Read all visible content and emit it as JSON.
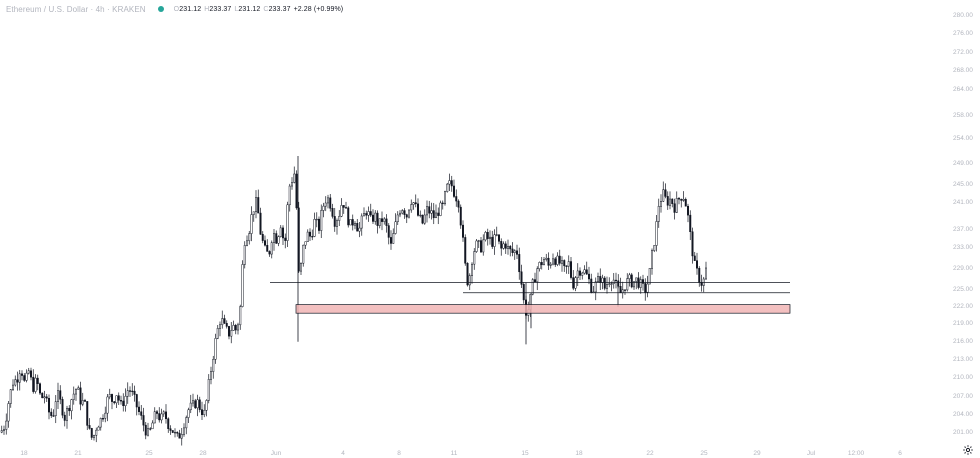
{
  "header": {
    "title": "Ethereum / U.S. Dollar · 4h · KRAKEN",
    "ohlc": [
      {
        "key": "O",
        "value": "231.12"
      },
      {
        "key": "H",
        "value": "233.37"
      },
      {
        "key": "L",
        "value": "231.12"
      },
      {
        "key": "C",
        "value": "233.37"
      }
    ],
    "change": "+2.28 (+0.99%)"
  },
  "icons": {
    "settings": "gear-icon",
    "status": "status-dot-icon"
  },
  "colors": {
    "candle": "#131722",
    "level_line": "#131722",
    "zone_fill": "#f1b5b5",
    "zone_stroke": "#131722",
    "status_dot": "#26a69a",
    "axis_text": "#b2b5be"
  },
  "chart_data": {
    "type": "candlestick",
    "symbol": "Ethereum / U.S. Dollar",
    "timeframe": "4h",
    "exchange": "KRAKEN",
    "x_tick_labels": [
      "18",
      "21",
      "25",
      "28",
      "Jun",
      "4",
      "8",
      "11",
      "15",
      "18",
      "22",
      "25",
      "29",
      "Jul",
      "12:00",
      "6"
    ],
    "y_tick_labels": [
      "201.00",
      "204.00",
      "207.00",
      "210.00",
      "213.00",
      "216.00",
      "219.00",
      "222.00",
      "225.00",
      "229.00",
      "233.00",
      "237.00",
      "241.00",
      "245.00",
      "249.00",
      "254.00",
      "258.00",
      "264.00",
      "268.00",
      "272.00",
      "276.00",
      "280.00"
    ],
    "ylim": [
      200,
      281
    ],
    "price_path": [
      [
        0,
        202.2
      ],
      [
        4,
        203.5
      ],
      [
        8,
        208.0
      ],
      [
        12,
        211.5
      ],
      [
        16,
        212.0
      ],
      [
        20,
        214.5
      ],
      [
        24,
        211.0
      ],
      [
        28,
        213.5
      ],
      [
        32,
        210.5
      ],
      [
        36,
        211.8
      ],
      [
        40,
        208.5
      ],
      [
        44,
        209.0
      ],
      [
        48,
        206.0
      ],
      [
        52,
        205.0
      ],
      [
        56,
        209.5
      ],
      [
        60,
        207.5
      ],
      [
        64,
        205.0
      ],
      [
        68,
        207.0
      ],
      [
        72,
        209.0
      ],
      [
        76,
        210.5
      ],
      [
        80,
        208.0
      ],
      [
        84,
        207.5
      ],
      [
        88,
        202.5
      ],
      [
        92,
        200.8
      ],
      [
        96,
        203.5
      ],
      [
        100,
        204.5
      ],
      [
        104,
        206.5
      ],
      [
        108,
        209.0
      ],
      [
        112,
        208.0
      ],
      [
        116,
        209.5
      ],
      [
        120,
        207.0
      ],
      [
        124,
        208.5
      ],
      [
        128,
        210.5
      ],
      [
        132,
        209.0
      ],
      [
        136,
        207.0
      ],
      [
        140,
        205.0
      ],
      [
        144,
        203.0
      ],
      [
        148,
        201.5
      ],
      [
        152,
        204.0
      ],
      [
        156,
        206.0
      ],
      [
        160,
        204.5
      ],
      [
        164,
        205.5
      ],
      [
        168,
        203.5
      ],
      [
        172,
        202.5
      ],
      [
        176,
        201.0
      ],
      [
        180,
        202.0
      ],
      [
        184,
        204.5
      ],
      [
        188,
        206.5
      ],
      [
        192,
        207.0
      ],
      [
        196,
        208.0
      ],
      [
        200,
        206.5
      ],
      [
        204,
        205.5
      ],
      [
        208,
        211.0
      ],
      [
        212,
        216.0
      ],
      [
        216,
        220.5
      ],
      [
        220,
        223.5
      ],
      [
        224,
        221.5
      ],
      [
        228,
        220.5
      ],
      [
        232,
        222.0
      ],
      [
        236,
        221.0
      ],
      [
        240,
        226.0
      ],
      [
        242,
        234.0
      ],
      [
        244,
        238.0
      ],
      [
        248,
        239.5
      ],
      [
        252,
        243.5
      ],
      [
        256,
        245.0
      ],
      [
        260,
        239.0
      ],
      [
        264,
        236.0
      ],
      [
        268,
        235.0
      ],
      [
        272,
        239.5
      ],
      [
        276,
        238.0
      ],
      [
        280,
        241.0
      ],
      [
        284,
        236.5
      ],
      [
        288,
        247.5
      ],
      [
        292,
        249.5
      ],
      [
        295,
        251.0
      ],
      [
        297,
        232.0
      ],
      [
        299,
        231.0
      ],
      [
        302,
        236.0
      ],
      [
        306,
        239.0
      ],
      [
        310,
        238.5
      ],
      [
        314,
        241.5
      ],
      [
        318,
        240.0
      ],
      [
        322,
        244.0
      ],
      [
        326,
        246.0
      ],
      [
        330,
        244.5
      ],
      [
        334,
        241.5
      ],
      [
        338,
        242.5
      ],
      [
        342,
        245.5
      ],
      [
        346,
        242.5
      ],
      [
        350,
        240.5
      ],
      [
        354,
        242.0
      ],
      [
        358,
        239.5
      ],
      [
        362,
        242.0
      ],
      [
        366,
        243.5
      ],
      [
        370,
        241.5
      ],
      [
        374,
        242.5
      ],
      [
        378,
        240.5
      ],
      [
        382,
        242.0
      ],
      [
        386,
        240.0
      ],
      [
        390,
        236.5
      ],
      [
        394,
        240.0
      ],
      [
        398,
        243.5
      ],
      [
        402,
        244.0
      ],
      [
        406,
        242.5
      ],
      [
        410,
        245.5
      ],
      [
        414,
        244.5
      ],
      [
        418,
        242.0
      ],
      [
        422,
        241.0
      ],
      [
        426,
        243.5
      ],
      [
        430,
        243.0
      ],
      [
        434,
        242.0
      ],
      [
        438,
        243.5
      ],
      [
        442,
        244.0
      ],
      [
        446,
        247.5
      ],
      [
        450,
        248.5
      ],
      [
        454,
        246.5
      ],
      [
        458,
        245.0
      ],
      [
        462,
        238.0
      ],
      [
        466,
        230.0
      ],
      [
        469,
        231.5
      ],
      [
        472,
        235.5
      ],
      [
        476,
        237.0
      ],
      [
        480,
        236.5
      ],
      [
        484,
        238.5
      ],
      [
        488,
        238.0
      ],
      [
        492,
        237.5
      ],
      [
        496,
        238.5
      ],
      [
        500,
        236.0
      ],
      [
        504,
        237.5
      ],
      [
        508,
        236.0
      ],
      [
        512,
        235.5
      ],
      [
        516,
        236.0
      ],
      [
        520,
        231.0
      ],
      [
        523,
        226.5
      ],
      [
        526,
        224.0
      ],
      [
        529,
        226.0
      ],
      [
        532,
        229.5
      ],
      [
        536,
        232.5
      ],
      [
        540,
        233.5
      ],
      [
        544,
        234.5
      ],
      [
        548,
        233.0
      ],
      [
        552,
        235.0
      ],
      [
        556,
        234.0
      ],
      [
        560,
        233.5
      ],
      [
        564,
        232.0
      ],
      [
        568,
        233.5
      ],
      [
        572,
        229.5
      ],
      [
        576,
        232.0
      ],
      [
        580,
        232.5
      ],
      [
        584,
        232.0
      ],
      [
        588,
        230.5
      ],
      [
        592,
        228.5
      ],
      [
        596,
        230.0
      ],
      [
        600,
        231.0
      ],
      [
        604,
        229.0
      ],
      [
        608,
        230.5
      ],
      [
        612,
        231.0
      ],
      [
        616,
        229.0
      ],
      [
        620,
        228.0
      ],
      [
        624,
        229.5
      ],
      [
        628,
        230.5
      ],
      [
        632,
        230.0
      ],
      [
        636,
        230.5
      ],
      [
        640,
        229.5
      ],
      [
        644,
        228.5
      ],
      [
        648,
        230.5
      ],
      [
        652,
        236.0
      ],
      [
        655,
        239.5
      ],
      [
        658,
        244.5
      ],
      [
        662,
        246.5
      ],
      [
        666,
        245.0
      ],
      [
        670,
        245.5
      ],
      [
        674,
        244.0
      ],
      [
        678,
        245.5
      ],
      [
        682,
        246.5
      ],
      [
        686,
        244.0
      ],
      [
        690,
        238.0
      ],
      [
        694,
        233.0
      ],
      [
        698,
        231.0
      ],
      [
        702,
        229.5
      ],
      [
        706,
        233.0
      ]
    ],
    "annotations": [
      {
        "type": "horizontal-line",
        "price": 230.0,
        "x_start": 270,
        "x_end": 790
      },
      {
        "type": "horizontal-line",
        "price": 228.1,
        "x_start": 463,
        "x_end": 790
      },
      {
        "type": "rectangle-zone",
        "price_top": 225.9,
        "price_bottom": 224.3,
        "x_start": 296,
        "x_end": 790
      }
    ]
  }
}
